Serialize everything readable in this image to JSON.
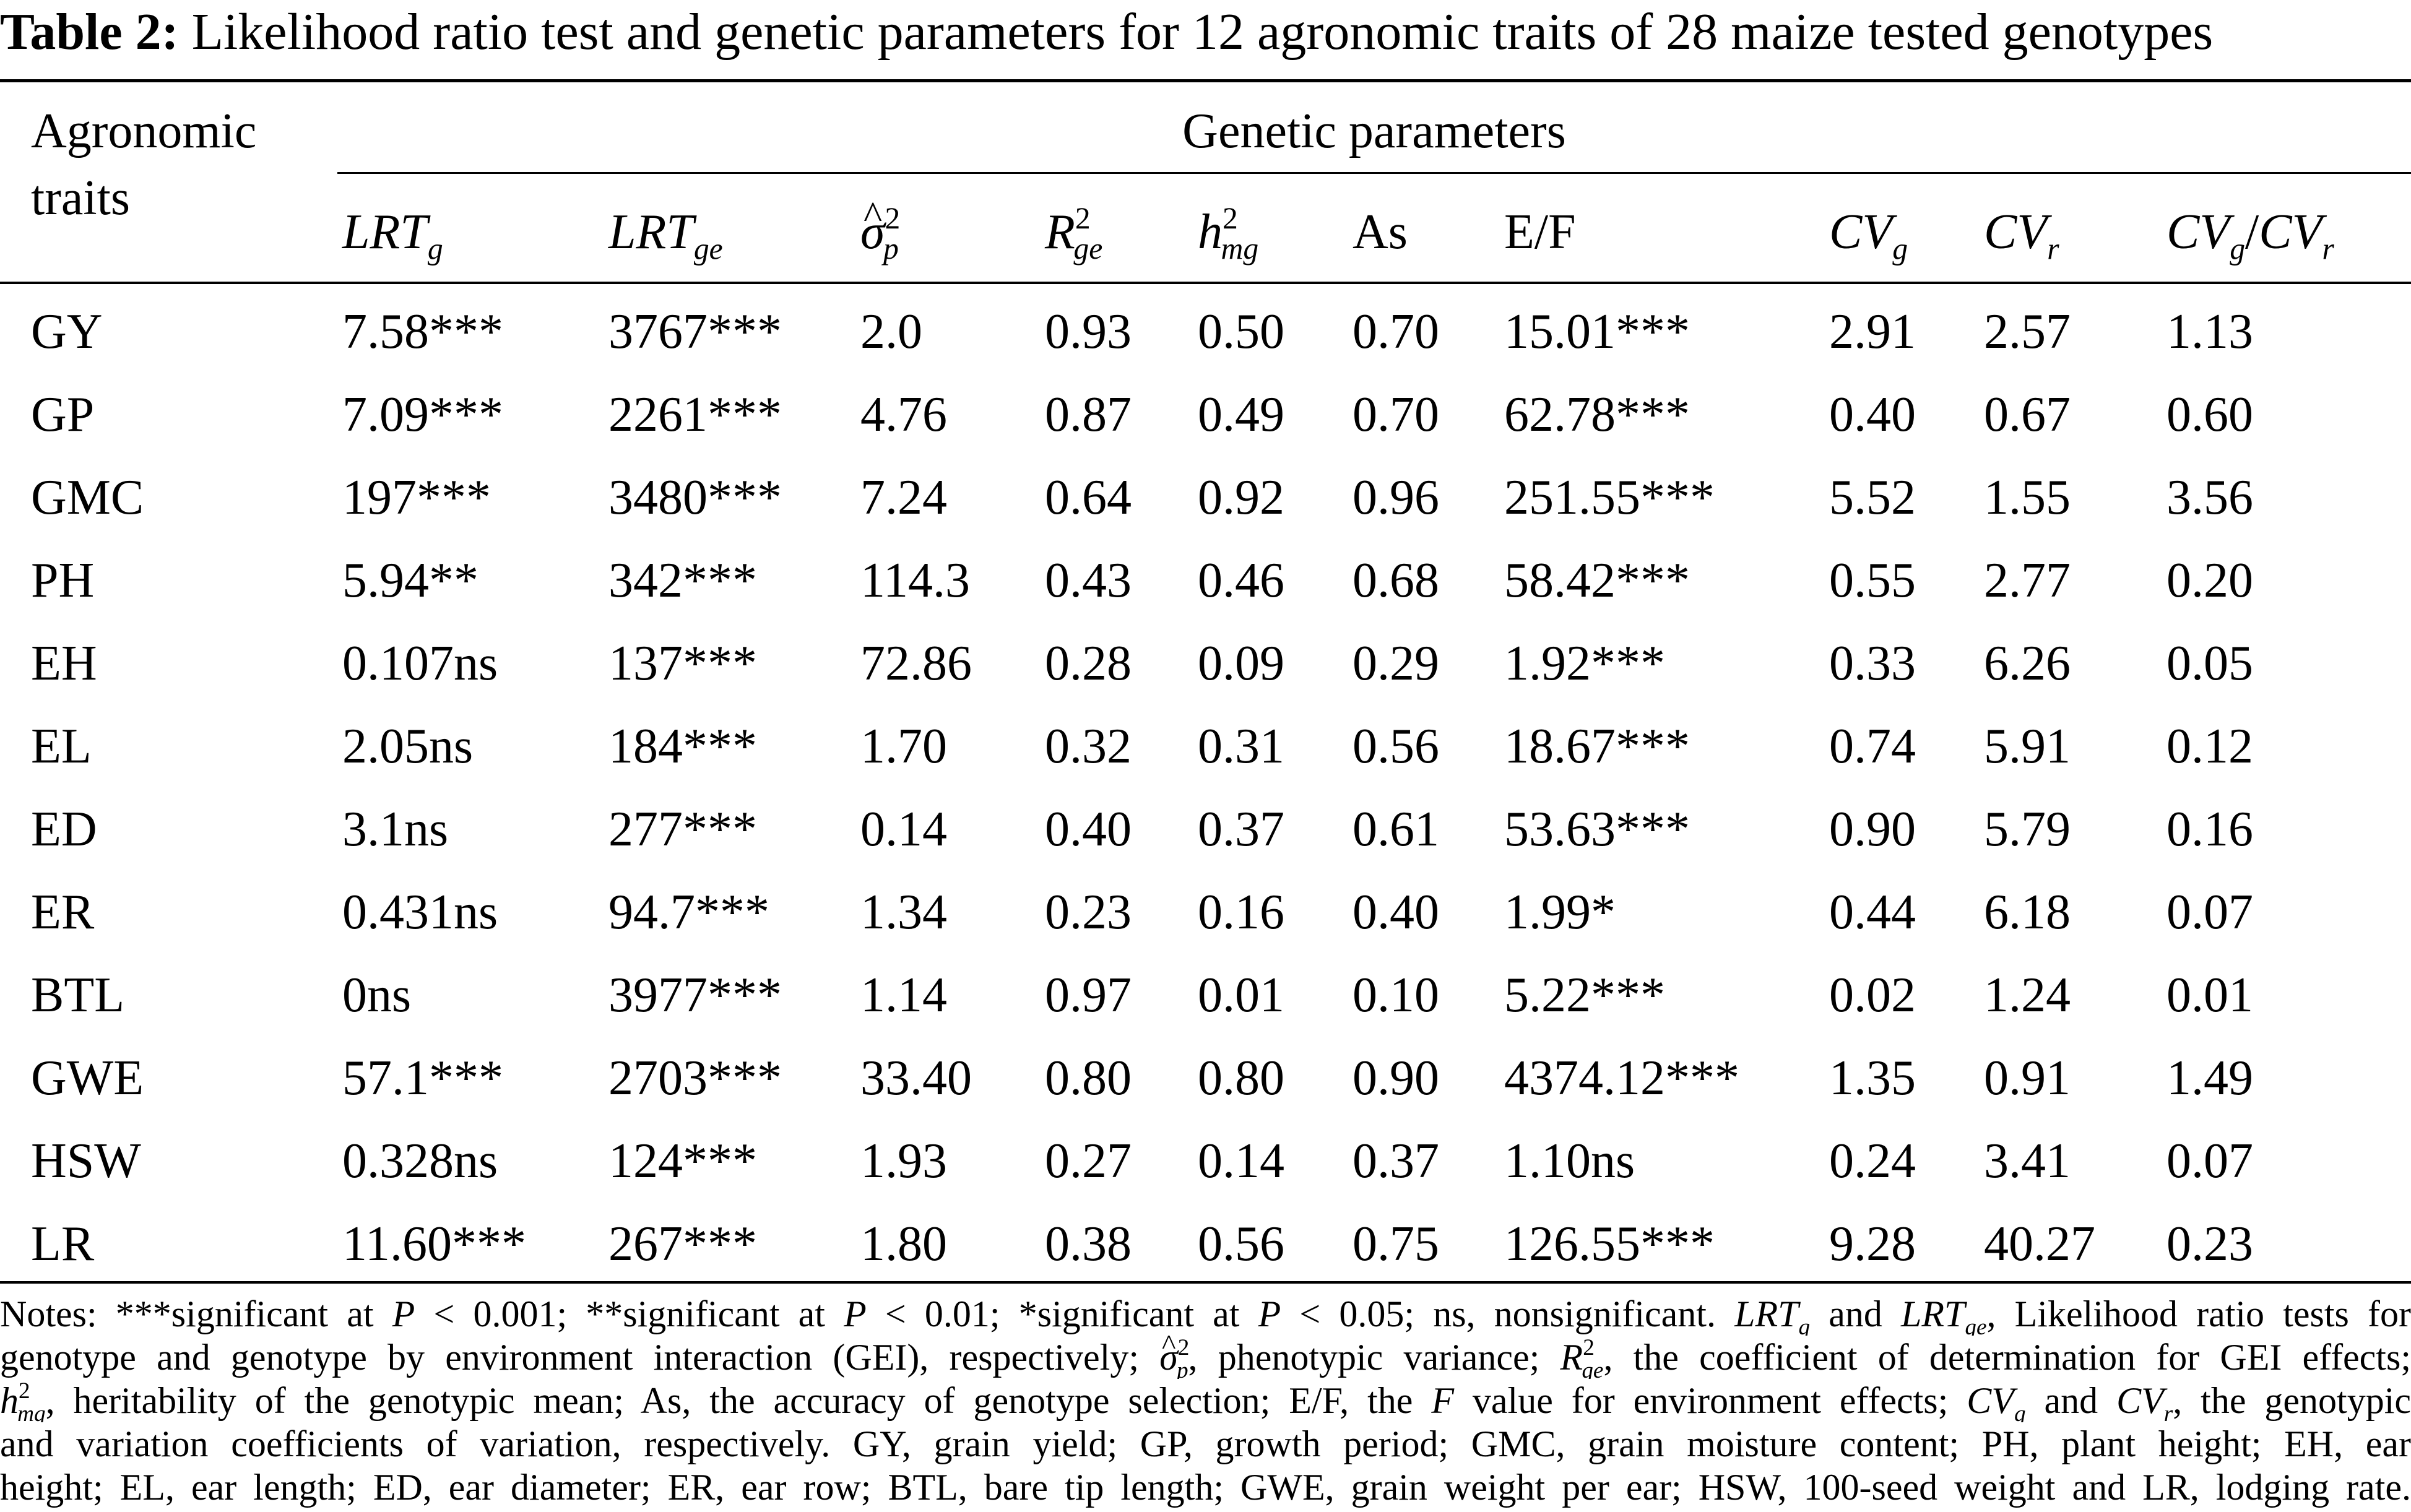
{
  "caption": {
    "label": "Table 2:",
    "text": "Likelihood ratio test and genetic parameters for 12 agronomic traits of 28 maize tested genotypes"
  },
  "header": {
    "traits_line1": "Agronomic",
    "traits_line2": "traits",
    "group": "Genetic parameters",
    "columns": {
      "lrtg": {
        "base": "LRT",
        "sub": "g"
      },
      "lrtge": {
        "base": "LRT",
        "sub": "ge"
      },
      "sigma": {
        "base": "σ",
        "sup": "2",
        "sub": "p"
      },
      "rge": {
        "base": "R",
        "sup": "2",
        "sub": "ge"
      },
      "hmg": {
        "base": "h",
        "sup": "2",
        "sub": "mg"
      },
      "as": "As",
      "ef": "E/F",
      "cvg": {
        "base": "CV",
        "sub": "g"
      },
      "cvr": {
        "base": "CV",
        "sub": "r"
      },
      "ratio": {
        "base1": "CV",
        "sub1": "g",
        "slash": "/",
        "base2": "CV",
        "sub2": "r"
      }
    }
  },
  "rows": [
    {
      "trait": "GY",
      "lrtg": "7.58***",
      "lrtge": "3767***",
      "sigma": "2.0",
      "rge": "0.93",
      "hmg": "0.50",
      "as": "0.70",
      "ef": "15.01***",
      "cvg": "2.91",
      "cvr": "2.57",
      "ratio": "1.13"
    },
    {
      "trait": "GP",
      "lrtg": "7.09***",
      "lrtge": "2261***",
      "sigma": "4.76",
      "rge": "0.87",
      "hmg": "0.49",
      "as": "0.70",
      "ef": "62.78***",
      "cvg": "0.40",
      "cvr": "0.67",
      "ratio": "0.60"
    },
    {
      "trait": "GMC",
      "lrtg": "197***",
      "lrtge": "3480***",
      "sigma": "7.24",
      "rge": "0.64",
      "hmg": "0.92",
      "as": "0.96",
      "ef": "251.55***",
      "cvg": "5.52",
      "cvr": "1.55",
      "ratio": "3.56"
    },
    {
      "trait": "PH",
      "lrtg": "5.94**",
      "lrtge": "342***",
      "sigma": "114.3",
      "rge": "0.43",
      "hmg": "0.46",
      "as": "0.68",
      "ef": "58.42***",
      "cvg": "0.55",
      "cvr": "2.77",
      "ratio": "0.20"
    },
    {
      "trait": "EH",
      "lrtg": "0.107ns",
      "lrtge": "137***",
      "sigma": "72.86",
      "rge": "0.28",
      "hmg": "0.09",
      "as": "0.29",
      "ef": "1.92***",
      "cvg": "0.33",
      "cvr": "6.26",
      "ratio": "0.05"
    },
    {
      "trait": "EL",
      "lrtg": "2.05ns",
      "lrtge": "184***",
      "sigma": "1.70",
      "rge": "0.32",
      "hmg": "0.31",
      "as": "0.56",
      "ef": "18.67***",
      "cvg": "0.74",
      "cvr": "5.91",
      "ratio": "0.12"
    },
    {
      "trait": "ED",
      "lrtg": "3.1ns",
      "lrtge": "277***",
      "sigma": "0.14",
      "rge": "0.40",
      "hmg": "0.37",
      "as": "0.61",
      "ef": "53.63***",
      "cvg": "0.90",
      "cvr": "5.79",
      "ratio": "0.16"
    },
    {
      "trait": "ER",
      "lrtg": "0.431ns",
      "lrtge": "94.7***",
      "sigma": "1.34",
      "rge": "0.23",
      "hmg": "0.16",
      "as": "0.40",
      "ef": "1.99*",
      "cvg": "0.44",
      "cvr": "6.18",
      "ratio": "0.07"
    },
    {
      "trait": "BTL",
      "lrtg": "0ns",
      "lrtge": "3977***",
      "sigma": "1.14",
      "rge": "0.97",
      "hmg": "0.01",
      "as": "0.10",
      "ef": "5.22***",
      "cvg": "0.02",
      "cvr": "1.24",
      "ratio": "0.01"
    },
    {
      "trait": "GWE",
      "lrtg": "57.1***",
      "lrtge": "2703***",
      "sigma": "33.40",
      "rge": "0.80",
      "hmg": "0.80",
      "as": "0.90",
      "ef": "4374.12***",
      "cvg": "1.35",
      "cvr": "0.91",
      "ratio": "1.49"
    },
    {
      "trait": "HSW",
      "lrtg": "0.328ns",
      "lrtge": "124***",
      "sigma": "1.93",
      "rge": "0.27",
      "hmg": "0.14",
      "as": "0.37",
      "ef": "1.10ns",
      "cvg": "0.24",
      "cvr": "3.41",
      "ratio": "0.07"
    },
    {
      "trait": "LR",
      "lrtg": "11.60***",
      "lrtge": "267***",
      "sigma": "1.80",
      "rge": "0.38",
      "hmg": "0.56",
      "as": "0.75",
      "ef": "126.55***",
      "cvg": "9.28",
      "cvr": "40.27",
      "ratio": "0.23"
    }
  ],
  "notes": {
    "l1_a": "Notes: ***significant at ",
    "l1_p": "P",
    "l1_b": " < 0.001; **significant at ",
    "l1_c": " < 0.01; *significant at ",
    "l1_d": " < 0.05; ns, nonsignificant. ",
    "l1_e": " and ",
    "l1_f": ", Likelihood ratio tests for",
    "l2_a": "genotype and genotype by environment interaction (GEI), respectively; ",
    "l2_b": ", phenotypic variance; ",
    "l2_c": ", the coefficient of determination for GEI effects;",
    "l3_a": ", heritability of the genotypic mean; As, the accuracy of genotype selection; E/F, the ",
    "l3_b": " value for environment effects; ",
    "l3_c": " and ",
    "l3_d": ", the genotypic",
    "l4": "and variation coefficients of variation, respectively. GY, grain yield; GP, growth period; GMC, grain moisture content; PH, plant height; EH, ear",
    "l5": "height; EL, ear length; ED, ear diameter; ER, ear row; BTL, bare tip length; GWE, grain weight per ear; HSW, 100-seed weight and LR, lodging rate.",
    "F": "F"
  }
}
